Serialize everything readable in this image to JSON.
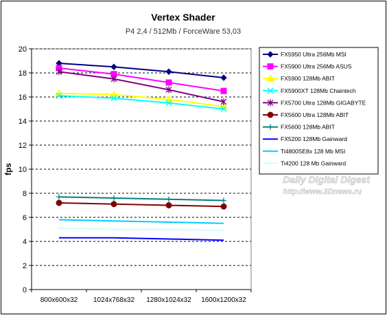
{
  "chart_data": {
    "type": "line",
    "title": "Vertex Shader",
    "subtitle": "P4 2,4 / 512Mb / ForceWare 53,03",
    "ylabel": "fps",
    "xlabel": "",
    "ylim": [
      0,
      20
    ],
    "yticks": [
      0,
      2,
      4,
      6,
      8,
      10,
      12,
      14,
      16,
      18,
      20
    ],
    "grid": "horizontal",
    "legend_position": "right",
    "categories": [
      "800x600x32",
      "1024x768x32",
      "1280x1024x32",
      "1600x1200x32"
    ],
    "watermark": {
      "line1": "Daily Digital Digest",
      "line2": "http://www.3Dnews.ru"
    },
    "series": [
      {
        "name": "FX5950 Ultra 256Mb MSI",
        "color": "#000080",
        "marker": "diamond",
        "values": [
          18.8,
          18.5,
          18.1,
          17.6
        ]
      },
      {
        "name": "FX5900 Ultra 256Mb ASUS",
        "color": "#ff00ff",
        "marker": "square",
        "values": [
          18.4,
          17.9,
          17.2,
          16.5
        ]
      },
      {
        "name": "FX5900 128Mb ABIT",
        "color": "#ffff00",
        "marker": "triangle",
        "values": [
          16.3,
          16.2,
          15.8,
          15.2
        ]
      },
      {
        "name": "FX5900XT 128Mb Chaintech",
        "color": "#00ffff",
        "marker": "x",
        "values": [
          16.1,
          15.9,
          15.5,
          15.0
        ]
      },
      {
        "name": "FX5700 Ultra 128Mb GIGABYTE",
        "color": "#800080",
        "marker": "star",
        "values": [
          18.1,
          17.5,
          16.6,
          15.6
        ]
      },
      {
        "name": "FX5600 Ultra 128Mb ABIT",
        "color": "#800000",
        "marker": "circle",
        "values": [
          7.2,
          7.1,
          7.0,
          6.9
        ]
      },
      {
        "name": "FX5600 128Mb ABIT",
        "color": "#008080",
        "marker": "plus",
        "values": [
          7.7,
          7.6,
          7.5,
          7.4
        ]
      },
      {
        "name": "FX5200 128Mb Gainward",
        "color": "#0000ff",
        "marker": "none",
        "values": [
          4.3,
          4.3,
          4.2,
          4.1
        ]
      },
      {
        "name": "Ti4800SE8x 128 Mb MSI",
        "color": "#00ccff",
        "marker": "none",
        "values": [
          5.8,
          5.7,
          5.6,
          5.5
        ]
      },
      {
        "name": "Ti4200 128 Mb Gainward",
        "color": "#ccffff",
        "marker": "tinyplus",
        "values": [
          5.1,
          5.0,
          5.0,
          4.9
        ]
      }
    ]
  }
}
